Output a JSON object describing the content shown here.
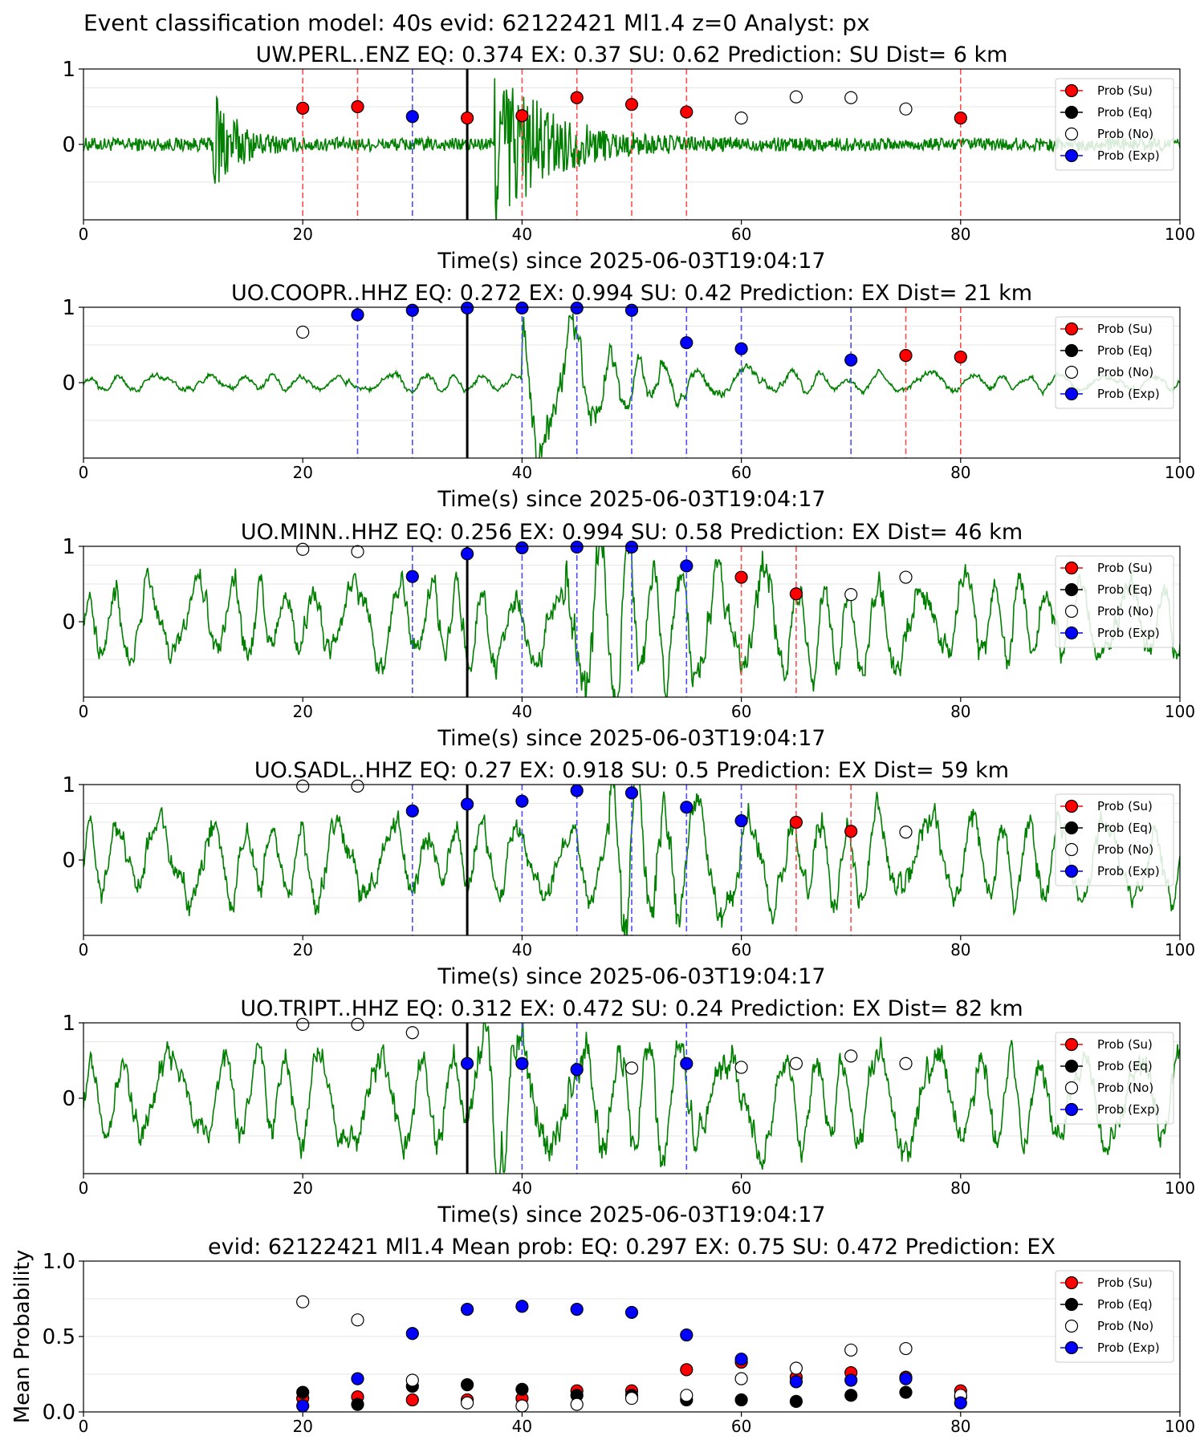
{
  "figure": {
    "suptitle": "Event classification model: 40s evid: 62122421 Ml1.4 z=0 Analyst: px"
  },
  "legend_labels": [
    "Prob (Su)",
    "Prob (Eq)",
    "Prob (No)",
    "Prob (Exp)"
  ],
  "colors": {
    "su": "#ff0000",
    "eq": "#000000",
    "no": "#ffffff",
    "exp": "#0000ff",
    "waveform": "#007f00",
    "pick": "#000000"
  },
  "chart_data": [
    {
      "type": "line",
      "title": "UW.PERL..ENZ   EQ: 0.374  EX: 0.37  SU: 0.62   Prediction: SU    Dist= 6 km",
      "xlabel": "Time(s) since 2025-06-03T19:04:17",
      "ylabel": "",
      "xlim": [
        0,
        100
      ],
      "ylim": [
        -1,
        1
      ],
      "xticks": [
        "0",
        "20",
        "40",
        "60",
        "80",
        "100"
      ],
      "yticks": [
        "1",
        "0"
      ],
      "pick_line_x": 35,
      "waveform": {
        "noise": 0.075,
        "bursts": [
          {
            "t0": 11.8,
            "amp": 0.72,
            "decay": 1.8
          },
          {
            "t0": 37.5,
            "amp": 1.0,
            "decay": 4.5
          }
        ],
        "freq": 9
      },
      "vlines": [
        {
          "x": 20,
          "class": "su"
        },
        {
          "x": 25,
          "class": "su"
        },
        {
          "x": 30,
          "class": "exp"
        },
        {
          "x": 40,
          "class": "su"
        },
        {
          "x": 45,
          "class": "su"
        },
        {
          "x": 50,
          "class": "su"
        },
        {
          "x": 55,
          "class": "su"
        },
        {
          "x": 80,
          "class": "su"
        }
      ],
      "points": [
        {
          "x": 20,
          "y": 0.48,
          "class": "su"
        },
        {
          "x": 25,
          "y": 0.5,
          "class": "su"
        },
        {
          "x": 30,
          "y": 0.37,
          "class": "exp"
        },
        {
          "x": 35,
          "y": 0.35,
          "class": "su"
        },
        {
          "x": 40,
          "y": 0.38,
          "class": "su"
        },
        {
          "x": 45,
          "y": 0.62,
          "class": "su"
        },
        {
          "x": 50,
          "y": 0.53,
          "class": "su"
        },
        {
          "x": 55,
          "y": 0.43,
          "class": "su"
        },
        {
          "x": 60,
          "y": 0.35,
          "class": "no"
        },
        {
          "x": 65,
          "y": 0.63,
          "class": "no"
        },
        {
          "x": 70,
          "y": 0.62,
          "class": "no"
        },
        {
          "x": 75,
          "y": 0.47,
          "class": "no"
        },
        {
          "x": 80,
          "y": 0.35,
          "class": "su"
        }
      ]
    },
    {
      "type": "line",
      "title": "UO.COOPR..HHZ   EQ: 0.272  EX: 0.994  SU: 0.42   Prediction: EX    Dist= 21 km",
      "xlabel": "Time(s) since 2025-06-03T19:04:17",
      "ylabel": "",
      "xlim": [
        0,
        100
      ],
      "ylim": [
        -1,
        1
      ],
      "xticks": [
        "0",
        "20",
        "40",
        "60",
        "80",
        "100"
      ],
      "yticks": [
        "1",
        "0"
      ],
      "pick_line_x": 35,
      "waveform": {
        "noise": 0.08,
        "bursts": [
          {
            "t0": 40,
            "amp": 0.85,
            "decay": 7
          }
        ],
        "freq": 0.55
      },
      "vlines": [
        {
          "x": 25,
          "class": "exp"
        },
        {
          "x": 30,
          "class": "exp"
        },
        {
          "x": 40,
          "class": "exp"
        },
        {
          "x": 45,
          "class": "exp"
        },
        {
          "x": 50,
          "class": "exp"
        },
        {
          "x": 55,
          "class": "exp"
        },
        {
          "x": 60,
          "class": "exp"
        },
        {
          "x": 70,
          "class": "exp"
        },
        {
          "x": 75,
          "class": "su"
        },
        {
          "x": 80,
          "class": "su"
        }
      ],
      "points": [
        {
          "x": 20,
          "y": 0.67,
          "class": "no"
        },
        {
          "x": 25,
          "y": 0.9,
          "class": "exp"
        },
        {
          "x": 30,
          "y": 0.96,
          "class": "exp"
        },
        {
          "x": 35,
          "y": 0.99,
          "class": "exp"
        },
        {
          "x": 40,
          "y": 0.99,
          "class": "exp"
        },
        {
          "x": 45,
          "y": 0.99,
          "class": "exp"
        },
        {
          "x": 50,
          "y": 0.96,
          "class": "exp"
        },
        {
          "x": 55,
          "y": 0.53,
          "class": "exp"
        },
        {
          "x": 60,
          "y": 0.45,
          "class": "exp"
        },
        {
          "x": 70,
          "y": 0.3,
          "class": "exp"
        },
        {
          "x": 75,
          "y": 0.36,
          "class": "su"
        },
        {
          "x": 80,
          "y": 0.34,
          "class": "su"
        }
      ]
    },
    {
      "type": "line",
      "title": "UO.MINN..HHZ   EQ: 0.256  EX: 0.994  SU: 0.58   Prediction: EX    Dist= 46 km",
      "xlabel": "Time(s) since 2025-06-03T19:04:17",
      "ylabel": "",
      "xlim": [
        0,
        100
      ],
      "ylim": [
        -1,
        1
      ],
      "xticks": [
        "0",
        "20",
        "40",
        "60",
        "80",
        "100"
      ],
      "yticks": [
        "1",
        "0"
      ],
      "pick_line_x": 35,
      "waveform": {
        "noise": 0.38,
        "bursts": [
          {
            "t0": 44,
            "amp": 0.5,
            "decay": 12
          }
        ],
        "freq": 0.6
      },
      "vlines": [
        {
          "x": 30,
          "class": "exp"
        },
        {
          "x": 40,
          "class": "exp"
        },
        {
          "x": 45,
          "class": "exp"
        },
        {
          "x": 50,
          "class": "exp"
        },
        {
          "x": 55,
          "class": "exp"
        },
        {
          "x": 60,
          "class": "su"
        },
        {
          "x": 65,
          "class": "su"
        }
      ],
      "points": [
        {
          "x": 20,
          "y": 0.96,
          "class": "no"
        },
        {
          "x": 25,
          "y": 0.93,
          "class": "no"
        },
        {
          "x": 30,
          "y": 0.6,
          "class": "exp"
        },
        {
          "x": 35,
          "y": 0.9,
          "class": "exp"
        },
        {
          "x": 40,
          "y": 0.98,
          "class": "exp"
        },
        {
          "x": 45,
          "y": 0.99,
          "class": "exp"
        },
        {
          "x": 50,
          "y": 0.99,
          "class": "exp"
        },
        {
          "x": 55,
          "y": 0.74,
          "class": "exp"
        },
        {
          "x": 60,
          "y": 0.59,
          "class": "su"
        },
        {
          "x": 65,
          "y": 0.37,
          "class": "su"
        },
        {
          "x": 70,
          "y": 0.36,
          "class": "no"
        },
        {
          "x": 75,
          "y": 0.59,
          "class": "no"
        }
      ]
    },
    {
      "type": "line",
      "title": "UO.SADL..HHZ   EQ: 0.27  EX: 0.918  SU: 0.5   Prediction: EX    Dist= 59 km",
      "xlabel": "Time(s) since 2025-06-03T19:04:17",
      "ylabel": "",
      "xlim": [
        0,
        100
      ],
      "ylim": [
        -1,
        1
      ],
      "xticks": [
        "0",
        "20",
        "40",
        "60",
        "80",
        "100"
      ],
      "yticks": [
        "1",
        "0"
      ],
      "pick_line_x": 35,
      "waveform": {
        "noise": 0.38,
        "bursts": [
          {
            "t0": 48,
            "amp": 0.55,
            "decay": 9
          }
        ],
        "freq": 0.55
      },
      "vlines": [
        {
          "x": 30,
          "class": "exp"
        },
        {
          "x": 40,
          "class": "exp"
        },
        {
          "x": 45,
          "class": "exp"
        },
        {
          "x": 50,
          "class": "exp"
        },
        {
          "x": 55,
          "class": "exp"
        },
        {
          "x": 60,
          "class": "exp"
        },
        {
          "x": 65,
          "class": "su"
        },
        {
          "x": 70,
          "class": "su"
        }
      ],
      "points": [
        {
          "x": 20,
          "y": 0.98,
          "class": "no"
        },
        {
          "x": 25,
          "y": 0.98,
          "class": "no"
        },
        {
          "x": 30,
          "y": 0.65,
          "class": "exp"
        },
        {
          "x": 35,
          "y": 0.74,
          "class": "exp"
        },
        {
          "x": 40,
          "y": 0.78,
          "class": "exp"
        },
        {
          "x": 45,
          "y": 0.92,
          "class": "exp"
        },
        {
          "x": 50,
          "y": 0.89,
          "class": "exp"
        },
        {
          "x": 55,
          "y": 0.7,
          "class": "exp"
        },
        {
          "x": 60,
          "y": 0.52,
          "class": "exp"
        },
        {
          "x": 65,
          "y": 0.5,
          "class": "su"
        },
        {
          "x": 70,
          "y": 0.38,
          "class": "su"
        },
        {
          "x": 75,
          "y": 0.37,
          "class": "no"
        }
      ]
    },
    {
      "type": "line",
      "title": "UO.TRIPT..HHZ   EQ: 0.312  EX: 0.472  SU: 0.24   Prediction: EX    Dist= 82 km",
      "xlabel": "Time(s) since 2025-06-03T19:04:17",
      "ylabel": "",
      "xlim": [
        0,
        100
      ],
      "ylim": [
        -1,
        1
      ],
      "xticks": [
        "0",
        "20",
        "40",
        "60",
        "80",
        "100"
      ],
      "yticks": [
        "1",
        "0"
      ],
      "pick_line_x": 35,
      "waveform": {
        "noise": 0.42,
        "bursts": [
          {
            "t0": 36,
            "amp": 0.4,
            "decay": 12
          }
        ],
        "freq": 0.5
      },
      "vlines": [
        {
          "x": 40,
          "class": "exp"
        },
        {
          "x": 45,
          "class": "exp"
        },
        {
          "x": 55,
          "class": "exp"
        }
      ],
      "points": [
        {
          "x": 20,
          "y": 0.98,
          "class": "no"
        },
        {
          "x": 25,
          "y": 0.98,
          "class": "no"
        },
        {
          "x": 30,
          "y": 0.87,
          "class": "no"
        },
        {
          "x": 35,
          "y": 0.46,
          "class": "exp"
        },
        {
          "x": 40,
          "y": 0.46,
          "class": "exp"
        },
        {
          "x": 45,
          "y": 0.38,
          "class": "exp"
        },
        {
          "x": 50,
          "y": 0.4,
          "class": "no"
        },
        {
          "x": 55,
          "y": 0.46,
          "class": "exp"
        },
        {
          "x": 60,
          "y": 0.41,
          "class": "no"
        },
        {
          "x": 65,
          "y": 0.46,
          "class": "no"
        },
        {
          "x": 70,
          "y": 0.56,
          "class": "no"
        },
        {
          "x": 75,
          "y": 0.46,
          "class": "no"
        }
      ]
    },
    {
      "type": "scatter",
      "title": "evid: 62122421   Ml1.4   Mean prob:    EQ: 0.297  EX: 0.75  SU: 0.472   Prediction: EX",
      "xlabel": "",
      "ylabel": "Mean Probability",
      "xlim": [
        0,
        100
      ],
      "ylim": [
        0,
        1
      ],
      "xticks": [
        "0",
        "20",
        "40",
        "60",
        "80",
        "100"
      ],
      "yticks": [
        "1.0",
        "0.5",
        "0.0"
      ],
      "grid_y": [
        0.25,
        0.5,
        0.75
      ],
      "series": [
        {
          "name": "Prob (Su)",
          "class": "su",
          "x": [
            20,
            25,
            30,
            35,
            40,
            45,
            50,
            55,
            60,
            65,
            70,
            75,
            80
          ],
          "y": [
            0.09,
            0.1,
            0.08,
            0.08,
            0.09,
            0.14,
            0.14,
            0.28,
            0.33,
            0.23,
            0.26,
            0.23,
            0.14
          ]
        },
        {
          "name": "Prob (Eq)",
          "class": "eq",
          "x": [
            20,
            25,
            30,
            35,
            40,
            45,
            50,
            55,
            60,
            65,
            70,
            75,
            80
          ],
          "y": [
            0.13,
            0.05,
            0.17,
            0.18,
            0.15,
            0.11,
            0.11,
            0.08,
            0.08,
            0.07,
            0.11,
            0.13,
            0.1
          ]
        },
        {
          "name": "Prob (No)",
          "class": "no",
          "x": [
            20,
            25,
            30,
            35,
            40,
            45,
            50,
            55,
            60,
            65,
            70,
            75,
            80
          ],
          "y": [
            0.73,
            0.61,
            0.21,
            0.06,
            0.04,
            0.05,
            0.09,
            0.11,
            0.22,
            0.29,
            0.41,
            0.42,
            0.11
          ]
        },
        {
          "name": "Prob (Exp)",
          "class": "exp",
          "x": [
            20,
            25,
            30,
            35,
            40,
            45,
            50,
            55,
            60,
            65,
            70,
            75,
            80
          ],
          "y": [
            0.04,
            0.22,
            0.52,
            0.68,
            0.7,
            0.68,
            0.66,
            0.51,
            0.35,
            0.2,
            0.21,
            0.22,
            0.06
          ]
        }
      ]
    }
  ]
}
